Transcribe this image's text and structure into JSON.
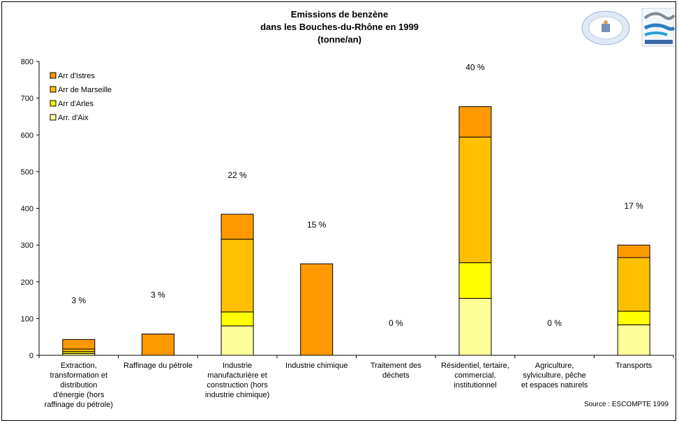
{
  "chart_data": {
    "type": "bar",
    "stacked": true,
    "title_lines": [
      "Emissions de benzène",
      "dans les Bouches-du-Rhône en 1999",
      "(tonne/an)"
    ],
    "xlabel": "",
    "ylabel": "",
    "ylim": [
      0,
      800
    ],
    "yticks": [
      0,
      100,
      200,
      300,
      400,
      500,
      600,
      700,
      800
    ],
    "grid": false,
    "legend_position": "top-left",
    "categories": [
      [
        "Extraction,",
        "transformation et",
        "distribution",
        "d'énergie (hors",
        "raffinage du pétrole)"
      ],
      [
        "Raffinage du pétrole"
      ],
      [
        "Industrie",
        "manufacturière et",
        "construction (hors",
        "industrie chimique)"
      ],
      [
        "Industrie chimique"
      ],
      [
        "Traitement des",
        "déchets"
      ],
      [
        "Résidentiel, tertaire,",
        "commercial,",
        "institutionnel"
      ],
      [
        "Agriculture,",
        "sylviculture, pêche",
        "et espaces naturels"
      ],
      [
        "Transports"
      ]
    ],
    "percent_labels": [
      "3 %",
      "3 %",
      "22 %",
      "15 %",
      "0 %",
      "40 %",
      "0 %",
      "17 %"
    ],
    "series": [
      {
        "name": "Arr. d'Aix",
        "color": "#FFFF99",
        "values": [
          5,
          0,
          80,
          0,
          0,
          155,
          0,
          83
        ]
      },
      {
        "name": "Arr d'Arles",
        "color": "#FFFF00",
        "values": [
          5,
          0,
          38,
          0,
          0,
          97,
          0,
          37
        ]
      },
      {
        "name": "Arr de Marseille",
        "color": "#FFC000",
        "values": [
          7,
          0,
          198,
          0,
          0,
          342,
          0,
          146
        ]
      },
      {
        "name": "Arr d'Istres",
        "color": "#FF9900",
        "values": [
          26,
          58,
          68,
          249,
          0,
          83,
          0,
          34
        ]
      }
    ],
    "legend_order": [
      "Arr d'Istres",
      "Arr de Marseille",
      "Arr d'Arles",
      "Arr. d'Aix"
    ],
    "source_note": "Source : ESCOMPTE 1999"
  }
}
